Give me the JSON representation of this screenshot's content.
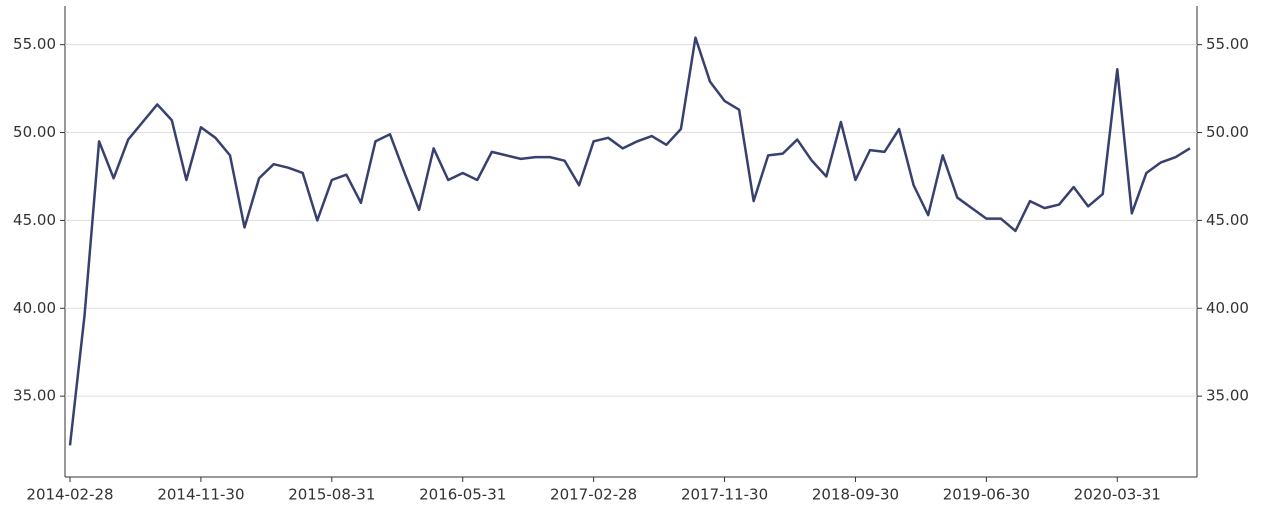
{
  "chart_data": {
    "type": "line",
    "categories": [
      "2014-02-28",
      null,
      null,
      null,
      null,
      null,
      null,
      null,
      null,
      "2014-11-30",
      null,
      null,
      null,
      null,
      null,
      null,
      null,
      null,
      "2015-08-31",
      null,
      null,
      null,
      null,
      null,
      null,
      null,
      null,
      "2016-05-31",
      null,
      null,
      null,
      null,
      null,
      null,
      null,
      null,
      "2017-02-28",
      null,
      null,
      null,
      null,
      null,
      null,
      null,
      null,
      "2017-11-30",
      null,
      null,
      null,
      null,
      null,
      null,
      null,
      null,
      "2018-09-30",
      null,
      null,
      null,
      null,
      null,
      null,
      null,
      null,
      "2019-06-30",
      null,
      null,
      null,
      null,
      null,
      null,
      null,
      null,
      "2020-03-31",
      null,
      null,
      null,
      null,
      null
    ],
    "series": [
      {
        "color": "#38406f",
        "values": [
          32.2,
          39.6,
          49.5,
          47.4,
          49.6,
          50.6,
          51.6,
          50.7,
          47.3,
          50.3,
          49.7,
          48.7,
          44.6,
          47.4,
          48.2,
          48.0,
          47.7,
          45.0,
          47.3,
          47.6,
          46.0,
          49.5,
          49.9,
          47.7,
          45.6,
          49.1,
          47.3,
          47.7,
          47.3,
          48.9,
          48.7,
          48.5,
          48.6,
          48.6,
          48.4,
          47.0,
          49.5,
          49.7,
          49.1,
          49.5,
          49.8,
          49.3,
          50.2,
          55.4,
          52.9,
          51.8,
          51.3,
          46.1,
          48.7,
          48.8,
          49.6,
          48.4,
          47.5,
          50.6,
          47.3,
          49.0,
          48.9,
          50.2,
          47.0,
          45.3,
          48.7,
          46.3,
          45.7,
          45.1,
          45.1,
          44.4,
          46.1,
          45.7,
          45.9,
          46.9,
          45.8,
          46.5,
          53.6,
          45.4,
          47.7,
          48.3,
          48.6,
          49.1
        ]
      }
    ],
    "ylim": [
      30.4,
      57.2
    ],
    "yticks": [
      {
        "value": 35,
        "label": "35.00"
      },
      {
        "value": 40,
        "label": "40.00"
      },
      {
        "value": 45,
        "label": "45.00"
      },
      {
        "value": 50,
        "label": "50.00"
      },
      {
        "value": 55,
        "label": "55.00"
      }
    ],
    "grid": true
  }
}
